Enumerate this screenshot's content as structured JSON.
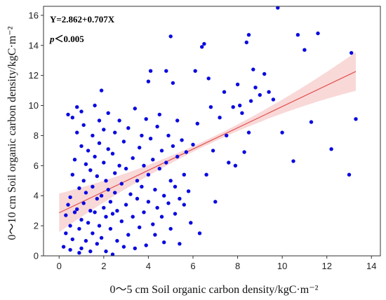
{
  "chart_data": {
    "type": "scatter",
    "xlabel": "0～5 cm Soil organic carbon density/kgC·m⁻²",
    "ylabel": "0～10 cm Soil organic carbon density/kgC·m⁻²",
    "xlim": [
      -0.7,
      14.4
    ],
    "ylim": [
      0,
      16.6
    ],
    "x_ticks": [
      0,
      2,
      4,
      6,
      8,
      10,
      12,
      14
    ],
    "y_ticks": [
      0,
      2,
      4,
      6,
      8,
      10,
      12,
      14,
      16
    ],
    "annotations": {
      "equation": "Y=2.862+0.707X",
      "p_symbol": "p",
      "p_rest": "＜0.005"
    },
    "regression": {
      "intercept": 2.862,
      "slope": 0.707,
      "x_range": [
        0.0,
        13.3
      ]
    },
    "colors": {
      "points": "#0a0ae0",
      "fit_line": "#e0504d",
      "confidence_band": "#f7c7c7"
    },
    "points": [
      [
        0.2,
        0.6
      ],
      [
        0.3,
        1.5
      ],
      [
        0.3,
        2.7
      ],
      [
        0.4,
        3.4
      ],
      [
        0.4,
        9.4
      ],
      [
        0.5,
        0.4
      ],
      [
        0.5,
        2.0
      ],
      [
        0.5,
        3.9
      ],
      [
        0.6,
        5.4
      ],
      [
        0.6,
        9.2
      ],
      [
        0.6,
        1.1
      ],
      [
        0.7,
        6.4
      ],
      [
        0.7,
        2.9
      ],
      [
        0.8,
        8.2
      ],
      [
        0.8,
        9.9
      ],
      [
        0.8,
        3.1
      ],
      [
        0.9,
        0.2
      ],
      [
        0.9,
        1.8
      ],
      [
        0.9,
        4.5
      ],
      [
        1.0,
        7.3
      ],
      [
        1.0,
        9.6
      ],
      [
        1.0,
        0.5
      ],
      [
        1.0,
        2.4
      ],
      [
        1.1,
        5.0
      ],
      [
        1.1,
        3.5
      ],
      [
        1.1,
        8.7
      ],
      [
        1.2,
        1.0
      ],
      [
        1.2,
        6.1
      ],
      [
        1.2,
        4.2
      ],
      [
        1.3,
        2.2
      ],
      [
        1.3,
        7.0
      ],
      [
        1.4,
        0.3
      ],
      [
        1.4,
        3.0
      ],
      [
        1.4,
        5.7
      ],
      [
        1.5,
        8.0
      ],
      [
        1.5,
        1.5
      ],
      [
        1.5,
        4.6
      ],
      [
        1.6,
        10.0
      ],
      [
        1.6,
        6.6
      ],
      [
        1.6,
        2.9
      ],
      [
        1.7,
        0.8
      ],
      [
        1.7,
        3.8
      ],
      [
        1.7,
        5.3
      ],
      [
        1.8,
        9.0
      ],
      [
        1.8,
        2.0
      ],
      [
        1.8,
        7.5
      ],
      [
        1.9,
        11.0
      ],
      [
        1.9,
        4.0
      ],
      [
        1.9,
        1.2
      ],
      [
        2.0,
        6.2
      ],
      [
        2.0,
        3.2
      ],
      [
        2.0,
        8.4
      ],
      [
        2.1,
        2.6
      ],
      [
        2.1,
        0.3
      ],
      [
        2.1,
        5.0
      ],
      [
        2.2,
        7.1
      ],
      [
        2.2,
        9.5
      ],
      [
        2.2,
        4.4
      ],
      [
        2.3,
        1.8
      ],
      [
        2.3,
        3.6
      ],
      [
        2.4,
        6.8
      ],
      [
        2.4,
        0.1
      ],
      [
        2.4,
        2.8
      ],
      [
        2.5,
        8.2
      ],
      [
        2.5,
        5.5
      ],
      [
        2.5,
        4.2
      ],
      [
        2.6,
        1.0
      ],
      [
        2.6,
        3.0
      ],
      [
        2.7,
        6.0
      ],
      [
        2.7,
        9.0
      ],
      [
        2.8,
        2.3
      ],
      [
        2.8,
        4.8
      ],
      [
        2.9,
        7.6
      ],
      [
        2.9,
        0.6
      ],
      [
        3.0,
        3.4
      ],
      [
        3.0,
        5.8
      ],
      [
        3.1,
        8.5
      ],
      [
        3.1,
        1.4
      ],
      [
        3.2,
        4.1
      ],
      [
        3.3,
        6.5
      ],
      [
        3.3,
        2.6
      ],
      [
        3.4,
        9.8
      ],
      [
        3.4,
        0.5
      ],
      [
        3.5,
        5.0
      ],
      [
        3.5,
        3.8
      ],
      [
        3.6,
        7.2
      ],
      [
        3.6,
        1.9
      ],
      [
        3.7,
        8.0
      ],
      [
        3.7,
        4.6
      ],
      [
        3.8,
        6.0
      ],
      [
        3.8,
        2.9
      ],
      [
        3.9,
        9.1
      ],
      [
        3.9,
        0.7
      ],
      [
        4.0,
        5.4
      ],
      [
        4.0,
        3.6
      ],
      [
        4.0,
        11.6
      ],
      [
        4.1,
        12.3
      ],
      [
        4.1,
        7.8
      ],
      [
        4.2,
        2.1
      ],
      [
        4.2,
        6.4
      ],
      [
        4.3,
        4.4
      ],
      [
        4.3,
        1.4
      ],
      [
        4.4,
        8.6
      ],
      [
        4.4,
        3.2
      ],
      [
        4.5,
        5.8
      ],
      [
        4.5,
        9.4
      ],
      [
        4.6,
        2.6
      ],
      [
        4.6,
        7.0
      ],
      [
        4.7,
        4.0
      ],
      [
        4.7,
        0.9
      ],
      [
        4.8,
        12.3
      ],
      [
        4.8,
        6.2
      ],
      [
        4.9,
        3.5
      ],
      [
        4.9,
        8.0
      ],
      [
        5.0,
        14.6
      ],
      [
        5.0,
        5.0
      ],
      [
        5.0,
        1.8
      ],
      [
        5.1,
        11.5
      ],
      [
        5.1,
        7.3
      ],
      [
        5.2,
        4.6
      ],
      [
        5.2,
        2.8
      ],
      [
        5.3,
        6.6
      ],
      [
        5.3,
        9.0
      ],
      [
        5.4,
        3.8
      ],
      [
        5.4,
        0.8
      ],
      [
        5.5,
        7.7
      ],
      [
        5.6,
        5.4
      ],
      [
        5.6,
        3.4
      ],
      [
        5.7,
        6.9
      ],
      [
        5.8,
        4.3
      ],
      [
        5.9,
        2.2
      ],
      [
        6.0,
        7.4
      ],
      [
        6.1,
        12.3
      ],
      [
        6.2,
        8.8
      ],
      [
        6.3,
        1.5
      ],
      [
        6.4,
        13.9
      ],
      [
        6.5,
        14.1
      ],
      [
        6.6,
        5.4
      ],
      [
        6.7,
        11.8
      ],
      [
        6.8,
        9.9
      ],
      [
        6.9,
        7.0
      ],
      [
        7.0,
        3.6
      ],
      [
        7.2,
        9.2
      ],
      [
        7.4,
        10.9
      ],
      [
        7.5,
        8.0
      ],
      [
        7.6,
        6.2
      ],
      [
        7.8,
        9.9
      ],
      [
        7.9,
        6.0
      ],
      [
        8.0,
        11.4
      ],
      [
        8.1,
        10.0
      ],
      [
        8.2,
        9.5
      ],
      [
        8.3,
        6.9
      ],
      [
        8.4,
        14.2
      ],
      [
        8.5,
        14.7
      ],
      [
        8.5,
        8.2
      ],
      [
        8.6,
        10.3
      ],
      [
        8.7,
        12.4
      ],
      [
        8.8,
        11.2
      ],
      [
        9.0,
        10.7
      ],
      [
        9.2,
        12.1
      ],
      [
        9.4,
        10.9
      ],
      [
        9.6,
        10.4
      ],
      [
        9.8,
        16.5
      ],
      [
        10.0,
        8.2
      ],
      [
        10.5,
        6.3
      ],
      [
        10.7,
        14.7
      ],
      [
        11.0,
        13.7
      ],
      [
        11.3,
        8.9
      ],
      [
        11.6,
        14.8
      ],
      [
        12.2,
        7.1
      ],
      [
        13.0,
        5.4
      ],
      [
        13.1,
        13.5
      ],
      [
        13.3,
        9.1
      ]
    ]
  }
}
